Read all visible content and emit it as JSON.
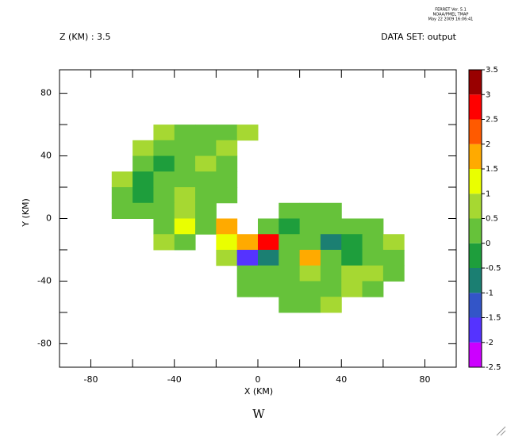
{
  "chart_data": {
    "type": "heatmap",
    "stamp": [
      "FERRET Ver. 5.1",
      "NOAA/PMEL TMAP",
      "May 22 2009 16:06:41"
    ],
    "subtitle_left": "Z (KM) : 3.5",
    "subtitle_right": "DATA SET: output",
    "x_label": "X (KM)",
    "y_label": "Y (KM)",
    "variable": "W",
    "xlim": [
      -95,
      95
    ],
    "ylim": [
      -95,
      95
    ],
    "xticks": [
      -80,
      -40,
      0,
      40,
      80
    ],
    "yticks": [
      -80,
      -40,
      0,
      40,
      80
    ],
    "xminorticks": [
      -60,
      -20,
      20,
      60
    ],
    "yminorticks": [
      -60,
      -20,
      20,
      60
    ],
    "x": [
      -65,
      -55,
      -45,
      -35,
      -25,
      -15,
      -5,
      5,
      15,
      25,
      35,
      45,
      55,
      65,
      75
    ],
    "y": [
      55,
      45,
      35,
      25,
      15,
      5,
      -5,
      -15,
      -25,
      -35,
      -45,
      -55
    ],
    "values": [
      [
        null,
        null,
        0.6,
        0.3,
        0.2,
        0.4,
        0.6,
        null,
        null,
        null,
        null,
        null,
        null,
        null,
        null
      ],
      [
        null,
        0.7,
        0.2,
        0.3,
        0.4,
        0.5,
        null,
        null,
        null,
        null,
        null,
        null,
        null,
        null,
        null
      ],
      [
        null,
        0.3,
        -0.2,
        0.2,
        0.6,
        0.3,
        null,
        null,
        null,
        null,
        null,
        null,
        null,
        null,
        null
      ],
      [
        0.5,
        -0.2,
        0.2,
        0.4,
        0.3,
        0.2,
        null,
        null,
        null,
        null,
        null,
        null,
        null,
        null,
        null
      ],
      [
        0.3,
        -0.2,
        0.3,
        0.5,
        0.2,
        0.4,
        null,
        null,
        null,
        null,
        null,
        null,
        null,
        null,
        null
      ],
      [
        0.4,
        0.1,
        0.3,
        0.6,
        0.3,
        null,
        null,
        null,
        0.3,
        0.2,
        0.4,
        null,
        null,
        null,
        null
      ],
      [
        null,
        null,
        0.4,
        1.0,
        0.2,
        1.8,
        null,
        0.2,
        -0.2,
        0.3,
        0.1,
        0.2,
        0.4,
        null,
        null
      ],
      [
        null,
        null,
        0.5,
        0.4,
        null,
        1.0,
        1.5,
        2.8,
        0.3,
        0.1,
        -0.6,
        -0.3,
        0.4,
        0.5,
        null
      ],
      [
        null,
        null,
        null,
        null,
        null,
        0.6,
        -1.6,
        -0.6,
        0.2,
        1.5,
        0.3,
        -0.3,
        0.4,
        0.3,
        null
      ],
      [
        null,
        null,
        null,
        null,
        null,
        null,
        0.3,
        0.2,
        0.3,
        0.6,
        0.2,
        0.5,
        0.8,
        0.3,
        null
      ],
      [
        null,
        null,
        null,
        null,
        null,
        null,
        0.3,
        0.0,
        0.4,
        0.2,
        0.3,
        0.6,
        0.4,
        null,
        null
      ],
      [
        null,
        null,
        null,
        null,
        null,
        null,
        null,
        null,
        0.3,
        0.4,
        0.5,
        null,
        null,
        null,
        null
      ]
    ],
    "levels": [
      -2.5,
      -2,
      -1.5,
      -1,
      -0.5,
      0,
      0.5,
      1,
      1.5,
      2,
      2.5,
      3,
      3.5
    ],
    "colors": [
      "#cc00ff",
      "#5533ff",
      "#3355c8",
      "#1b7f72",
      "#1e9e3c",
      "#66c23a",
      "#a6d832",
      "#eaff00",
      "#ffaa00",
      "#ff5a00",
      "#ff0000",
      "#990000"
    ]
  }
}
